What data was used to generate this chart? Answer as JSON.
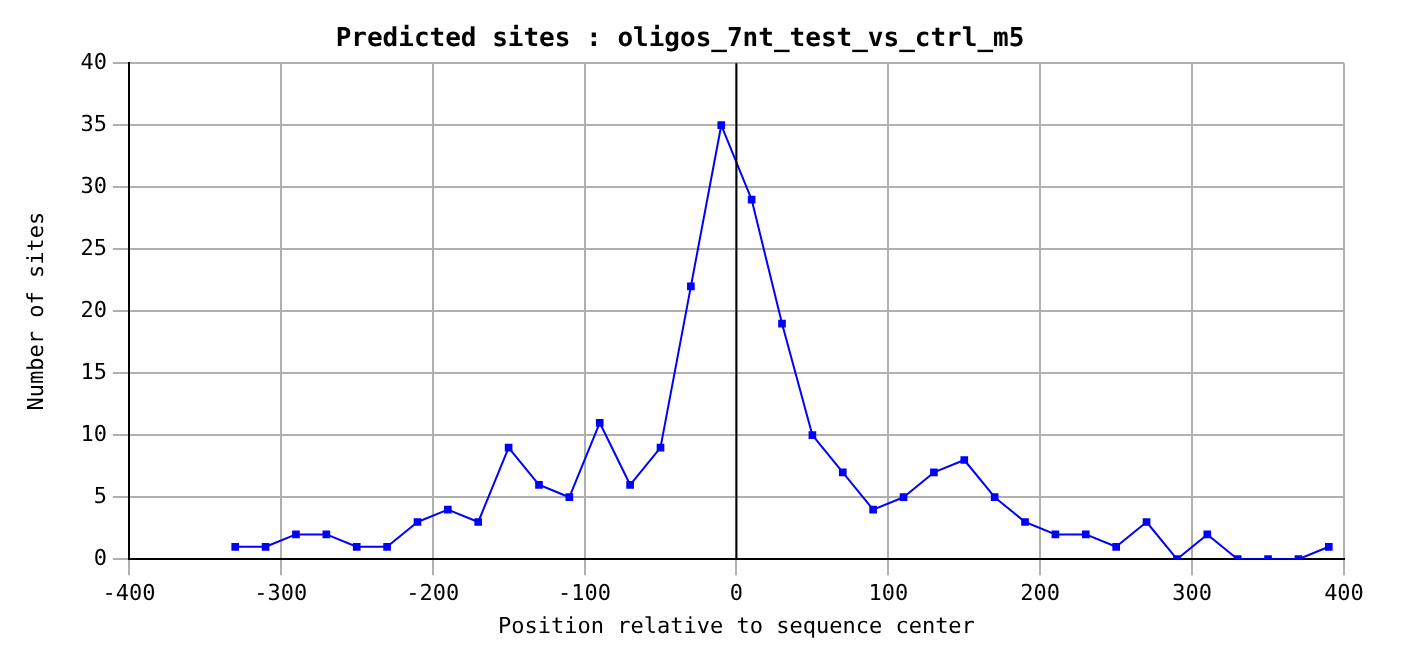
{
  "chart_data": {
    "type": "line",
    "title": "Predicted sites : oligos_7nt_test_vs_ctrl_m5",
    "xlabel": "Position relative to sequence center",
    "ylabel": "Number of sites",
    "x": [
      -330,
      -310,
      -290,
      -270,
      -250,
      -230,
      -210,
      -190,
      -170,
      -150,
      -130,
      -110,
      -90,
      -70,
      -50,
      -30,
      -10,
      10,
      30,
      50,
      70,
      90,
      110,
      130,
      150,
      170,
      190,
      210,
      230,
      250,
      270,
      290,
      310,
      330,
      350,
      370,
      390
    ],
    "series": [
      {
        "color": "#0000ff",
        "values": [
          1,
          1,
          2,
          2,
          1,
          1,
          3,
          4,
          3,
          9,
          6,
          5,
          11,
          6,
          9,
          22,
          35,
          29,
          19,
          10,
          7,
          4,
          5,
          7,
          8,
          5,
          3,
          2,
          2,
          1,
          3,
          0,
          2,
          0,
          0,
          0,
          1
        ]
      }
    ],
    "xlim": [
      -400,
      400
    ],
    "xticks": [
      -400,
      -300,
      -200,
      -100,
      0,
      100,
      200,
      300,
      400
    ],
    "ylim": [
      0,
      40
    ],
    "yticks": [
      0,
      5,
      10,
      15,
      20,
      25,
      30,
      35,
      40
    ],
    "ref_lines": [
      {
        "axis": "x",
        "value": 0,
        "color": "#000000"
      }
    ],
    "grid": true,
    "marker": "square",
    "line_style": "solid",
    "legend": false
  }
}
